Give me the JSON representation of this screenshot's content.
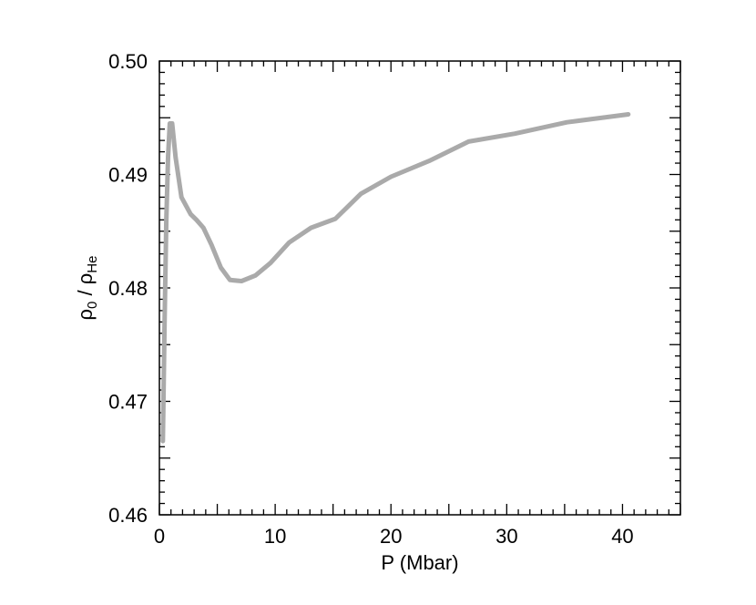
{
  "chart_data": {
    "type": "line",
    "title": "",
    "xlabel": "P (Mbar)",
    "ylabel": {
      "rho": "ρ",
      "sub_numerator": "0",
      "slash": " / ",
      "sub_denominator": "He"
    },
    "xlim": [
      0,
      45
    ],
    "ylim": [
      0.46,
      0.5
    ],
    "x_ticks": [
      0,
      10,
      20,
      30,
      40
    ],
    "x_tick_labels": [
      "0",
      "10",
      "20",
      "30",
      "40"
    ],
    "y_ticks": [
      0.46,
      0.47,
      0.48,
      0.49,
      0.5
    ],
    "y_tick_labels": [
      "0.46",
      "0.47",
      "0.48",
      "0.49",
      "0.50"
    ],
    "grid": false,
    "line_color": "#aaaaaa",
    "series": [
      {
        "x": [
          0.3,
          0.45,
          0.6,
          0.75,
          0.9,
          1.1,
          1.4,
          1.9,
          2.7,
          3.2,
          3.8,
          4.5,
          5.3,
          6.1,
          7.1,
          8.3,
          9.6,
          11.2,
          13.1,
          15.2,
          17.4,
          20.0,
          23.3,
          26.7,
          30.7,
          35.2,
          40.5
        ],
        "y": [
          0.4665,
          0.477,
          0.486,
          0.4915,
          0.4945,
          0.4945,
          0.4915,
          0.488,
          0.4865,
          0.486,
          0.4853,
          0.4838,
          0.4818,
          0.4807,
          0.4806,
          0.4811,
          0.4822,
          0.484,
          0.4853,
          0.4861,
          0.4883,
          0.4898,
          0.4912,
          0.4929,
          0.4936,
          0.4946,
          0.4953
        ]
      }
    ]
  }
}
